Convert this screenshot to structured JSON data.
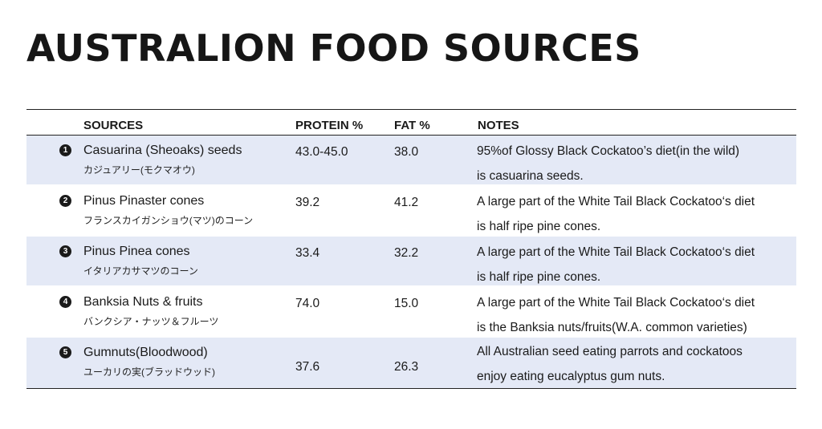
{
  "title": "AUSTRALION FOOD SOURCES",
  "headers": {
    "sources": "SOURCES",
    "protein": "PROTEIN %",
    "fat": "FAT %",
    "notes": "NOTES"
  },
  "rows": [
    {
      "number": "1",
      "name": "Casuarina (Sheoaks) seeds",
      "japanese": "カジュアリー(モクマオウ)",
      "protein": "43.0-45.0",
      "fat": "38.0",
      "note_line1": "95%of Glossy Black Cockatoo’s diet(in the wild)",
      "note_line2": "is casuarina seeds."
    },
    {
      "number": "2",
      "name": "Pinus Pinaster cones",
      "japanese": "フランスカイガンショウ(マツ)のコーン",
      "protein": "39.2",
      "fat": "41.2",
      "note_line1": "A large part of the White Tail Black Cockatoo‘s diet",
      "note_line2": "is half ripe pine cones."
    },
    {
      "number": "3",
      "name": "Pinus Pinea cones",
      "japanese": "イタリアカサマツのコーン",
      "protein": "33.4",
      "fat": "32.2",
      "note_line1": "A large part of the White Tail Black Cockatoo‘s diet",
      "note_line2": "is half ripe pine cones."
    },
    {
      "number": "4",
      "name": "Banksia Nuts & fruits",
      "japanese": "バンクシア・ナッツ＆フルーツ",
      "protein": "74.0",
      "fat": "15.0",
      "note_line1": "A large part of the White Tail Black Cockatoo‘s diet",
      "note_line2": "is the Banksia nuts/fruits(W.A. common varieties)"
    },
    {
      "number": "5",
      "name": "Gumnuts(Bloodwood)",
      "japanese": "ユーカリの実(ブラッドウッド)",
      "protein": "37.6",
      "fat": "26.3",
      "note_line1": "All Australian seed eating parrots and cockatoos",
      "note_line2": "enjoy eating eucalyptus gum nuts."
    }
  ],
  "colors": {
    "row_shade": "#e4e9f6",
    "rule": "#222222"
  }
}
